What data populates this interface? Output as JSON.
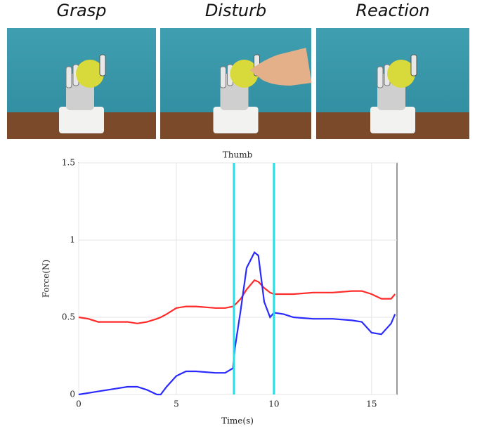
{
  "panels": [
    "Grasp",
    "Disturb",
    "Reaction"
  ],
  "chart_data": {
    "type": "line",
    "title": "Thumb",
    "xlabel": "Time(s)",
    "ylabel": "Force(N)",
    "x": [
      0,
      0.5,
      1,
      2,
      2.5,
      3,
      3.5,
      4,
      4.2,
      4.5,
      5,
      5.5,
      6,
      7,
      7.5,
      7.9,
      8,
      8.3,
      8.6,
      9,
      9.2,
      9.5,
      9.8,
      10,
      10.5,
      11,
      12,
      13,
      14,
      14.5,
      15,
      15.5,
      16,
      16.2
    ],
    "series": [
      {
        "color": "#ff2a2a",
        "values": [
          0.5,
          0.49,
          0.47,
          0.47,
          0.47,
          0.46,
          0.47,
          0.49,
          0.5,
          0.52,
          0.56,
          0.57,
          0.57,
          0.56,
          0.56,
          0.57,
          0.58,
          0.62,
          0.68,
          0.74,
          0.73,
          0.69,
          0.66,
          0.65,
          0.65,
          0.65,
          0.66,
          0.66,
          0.67,
          0.67,
          0.65,
          0.62,
          0.62,
          0.65
        ]
      },
      {
        "color": "#2a2aff",
        "values": [
          0,
          0.01,
          0.02,
          0.04,
          0.05,
          0.05,
          0.03,
          0,
          0,
          0.05,
          0.12,
          0.15,
          0.15,
          0.14,
          0.14,
          0.17,
          0.3,
          0.55,
          0.82,
          0.92,
          0.9,
          0.6,
          0.5,
          0.53,
          0.52,
          0.5,
          0.49,
          0.49,
          0.48,
          0.47,
          0.4,
          0.39,
          0.46,
          0.52
        ]
      }
    ],
    "vlines": [
      7.95,
      10
    ],
    "vline_color": "#22e0e8",
    "xlim": [
      0,
      16.3
    ],
    "ylim": [
      0,
      1.5
    ],
    "xticks": [
      0,
      5,
      10,
      15
    ],
    "yticks": [
      0,
      0.5,
      1,
      1.5
    ],
    "grid": true
  }
}
